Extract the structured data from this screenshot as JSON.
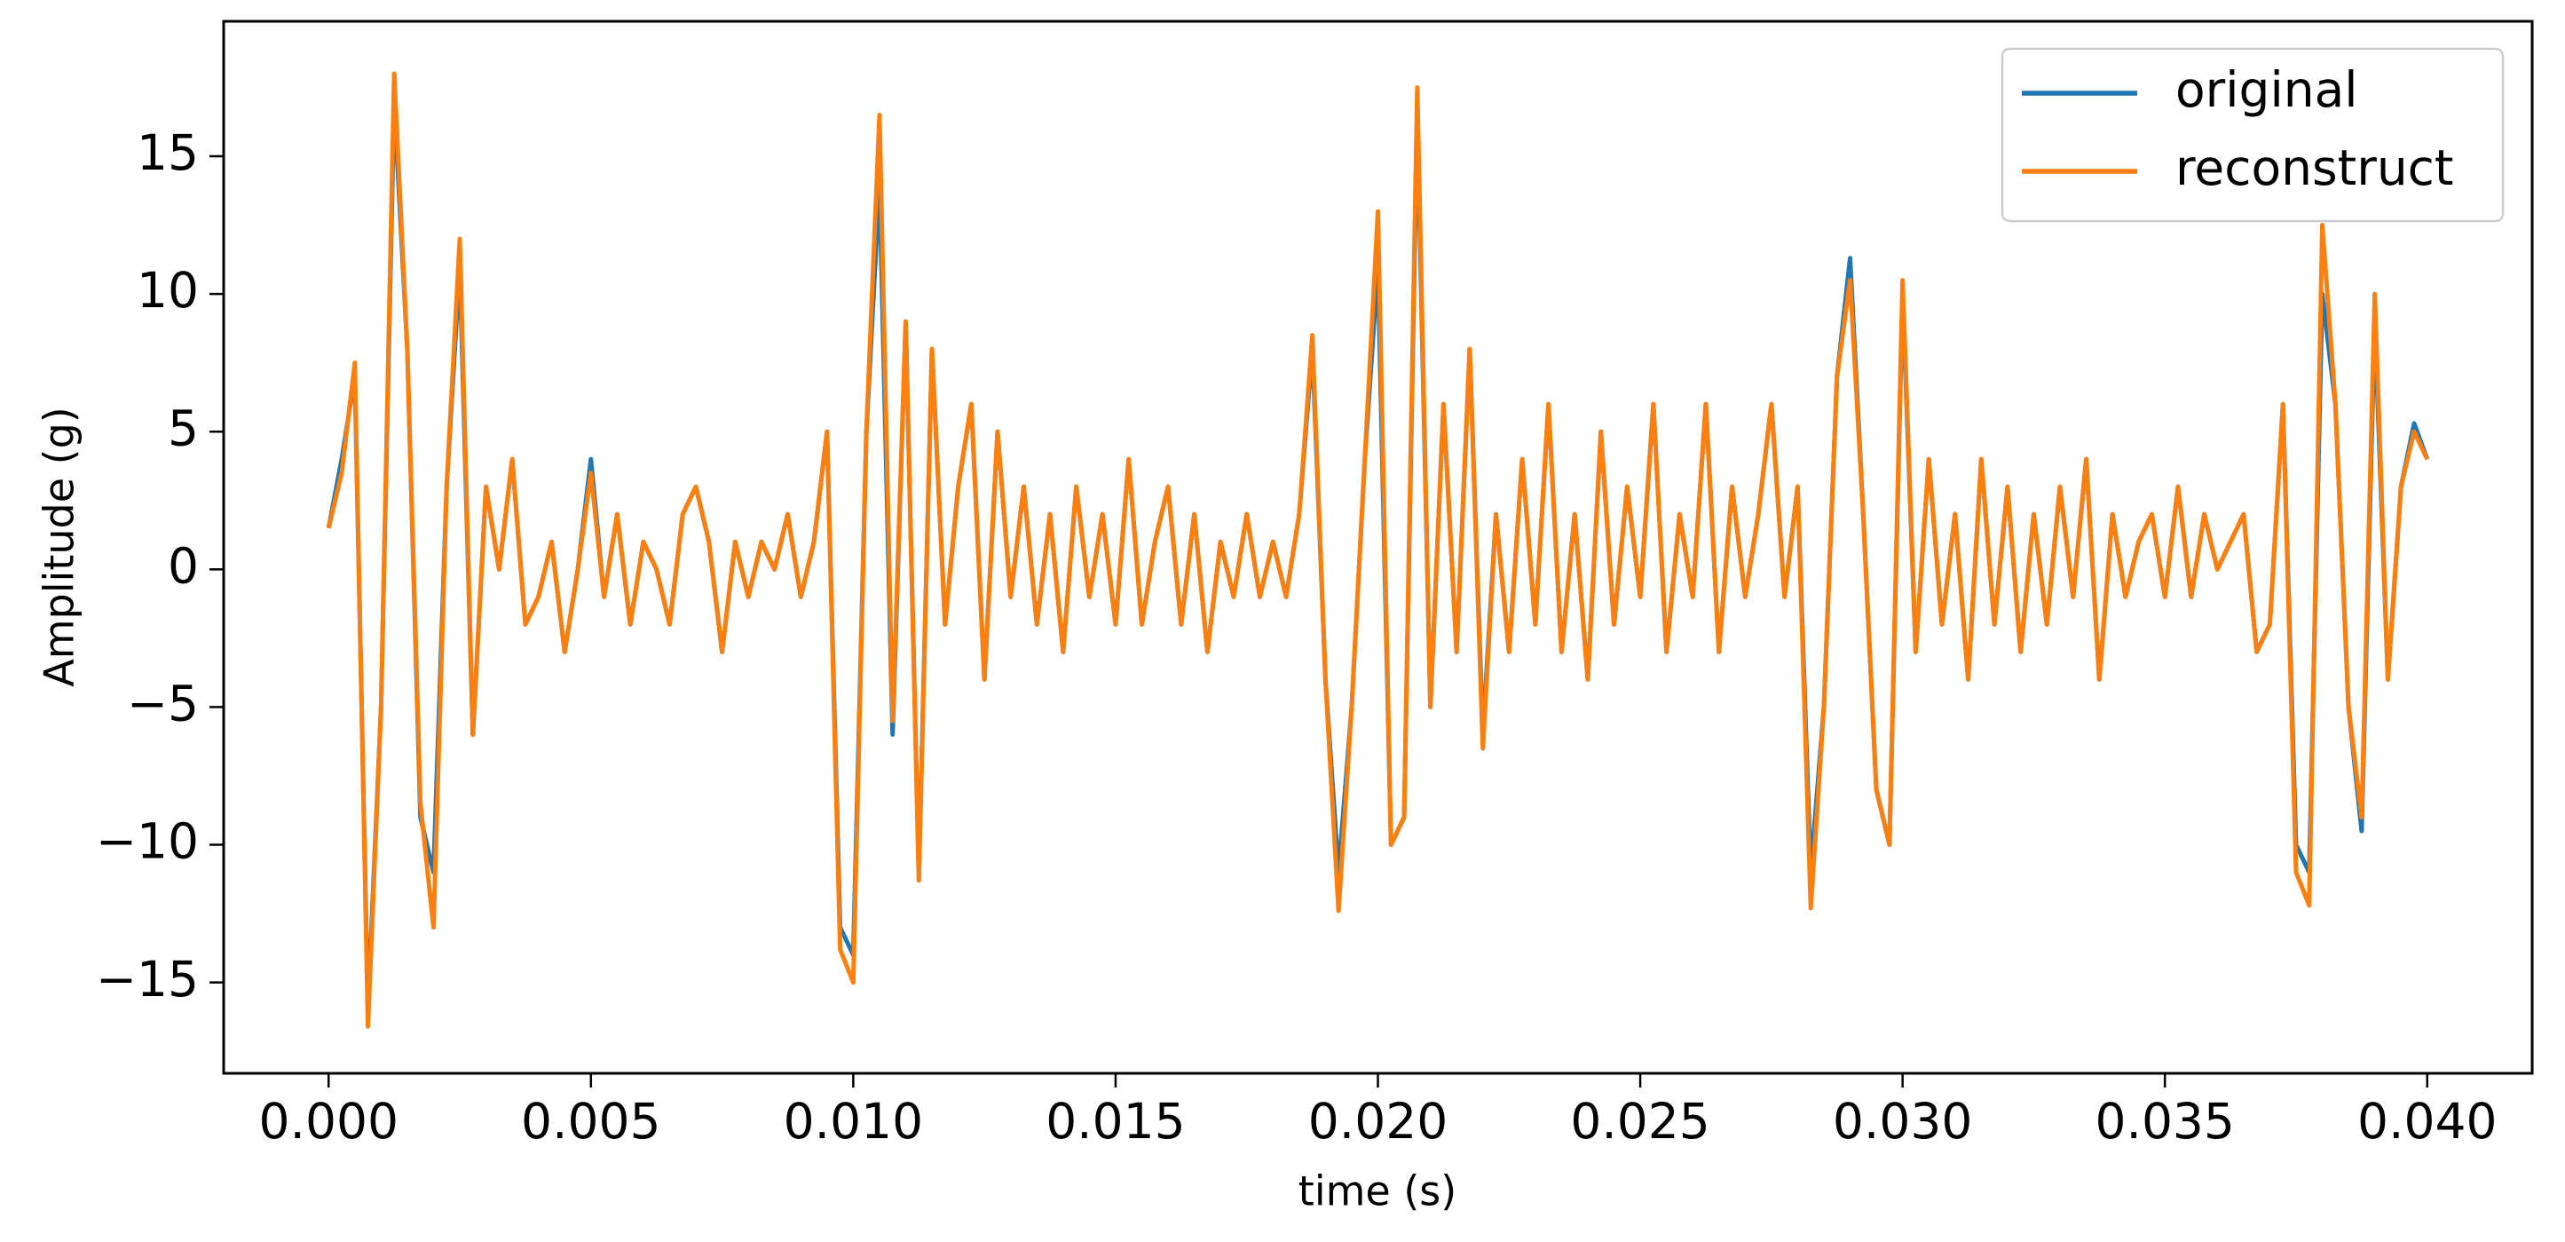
{
  "chart_data": {
    "type": "line",
    "xlabel": "time (s)",
    "ylabel": "Amplitude (g)",
    "xlim": [
      -0.002,
      0.042
    ],
    "ylim": [
      -18.3,
      19.9
    ],
    "xticks": [
      {
        "value": 0,
        "label": "0.000"
      },
      {
        "value": 0.005,
        "label": "0.005"
      },
      {
        "value": 0.01,
        "label": "0.010"
      },
      {
        "value": 0.015,
        "label": "0.015"
      },
      {
        "value": 0.02,
        "label": "0.020"
      },
      {
        "value": 0.025,
        "label": "0.025"
      },
      {
        "value": 0.03,
        "label": "0.030"
      },
      {
        "value": 0.035,
        "label": "0.035"
      },
      {
        "value": 0.04,
        "label": "0.040"
      }
    ],
    "yticks": [
      {
        "value": -15,
        "label": "−15"
      },
      {
        "value": -10,
        "label": "−10"
      },
      {
        "value": -5,
        "label": "−5"
      },
      0,
      5,
      10,
      15
    ],
    "legend": "upper right",
    "grid": false,
    "x": [
      0,
      0.00025,
      0.0005,
      0.00075,
      0.001,
      0.00125,
      0.0015,
      0.00175,
      0.002,
      0.00225,
      0.0025,
      0.00275,
      0.003,
      0.00325,
      0.0035,
      0.00375,
      0.004,
      0.00425,
      0.0045,
      0.00475,
      0.005,
      0.00525,
      0.0055,
      0.00575,
      0.006,
      0.00625,
      0.0065,
      0.00675,
      0.007,
      0.00725,
      0.0075,
      0.00775,
      0.008,
      0.00825,
      0.0085,
      0.00875,
      0.009,
      0.00925,
      0.0095,
      0.00975,
      0.01,
      0.01025,
      0.0105,
      0.01075,
      0.011,
      0.01125,
      0.0115,
      0.01175,
      0.012,
      0.01225,
      0.0125,
      0.01275,
      0.013,
      0.01325,
      0.0135,
      0.01375,
      0.014,
      0.01425,
      0.0145,
      0.01475,
      0.015,
      0.01525,
      0.0155,
      0.01575,
      0.016,
      0.01625,
      0.0165,
      0.01675,
      0.017,
      0.01725,
      0.0175,
      0.01775,
      0.018,
      0.01825,
      0.0185,
      0.01875,
      0.019,
      0.01925,
      0.0195,
      0.01975,
      0.02,
      0.02025,
      0.0205,
      0.02075,
      0.021,
      0.02125,
      0.0215,
      0.02175,
      0.022,
      0.02225,
      0.0225,
      0.02275,
      0.023,
      0.02325,
      0.0235,
      0.02375,
      0.024,
      0.02425,
      0.0245,
      0.02475,
      0.025,
      0.02525,
      0.0255,
      0.02575,
      0.026,
      0.02625,
      0.0265,
      0.02675,
      0.027,
      0.02725,
      0.0275,
      0.02775,
      0.028,
      0.02825,
      0.0285,
      0.02875,
      0.029,
      0.02925,
      0.0295,
      0.02975,
      0.03,
      0.03025,
      0.0305,
      0.03075,
      0.031,
      0.03125,
      0.0315,
      0.03175,
      0.032,
      0.03225,
      0.0325,
      0.03275,
      0.033,
      0.03325,
      0.0335,
      0.03375,
      0.034,
      0.03425,
      0.0345,
      0.03475,
      0.035,
      0.03525,
      0.0355,
      0.03575,
      0.036,
      0.03625,
      0.0365,
      0.03675,
      0.037,
      0.03725,
      0.0375,
      0.03775,
      0.038,
      0.03825,
      0.0385,
      0.03875,
      0.039,
      0.03925,
      0.0395,
      0.03975,
      0.04
    ],
    "series": [
      {
        "name": "original",
        "color": "#1f77b4",
        "values": [
          1.5,
          4,
          7,
          -16,
          -5,
          17,
          8,
          -9,
          -11,
          3,
          11,
          -6,
          3,
          0,
          4,
          -2,
          -1,
          1,
          -3,
          0,
          4,
          -1,
          2,
          -2,
          1,
          0,
          -2,
          2,
          3,
          1,
          -3,
          1,
          -1,
          1,
          0,
          2,
          -1,
          1,
          5,
          -13,
          -14,
          5,
          14,
          -6,
          9,
          -11,
          8,
          -2,
          3,
          6,
          -4,
          5,
          -1,
          3,
          -2,
          2,
          -3,
          3,
          -1,
          2,
          -2,
          4,
          -2,
          1,
          3,
          -2,
          2,
          -3,
          1,
          -1,
          2,
          -1,
          1,
          -1,
          2,
          8,
          -4,
          -11,
          -5,
          4,
          11,
          -10,
          -9,
          16.5,
          -5,
          6,
          -3,
          8,
          -6,
          2,
          -3,
          4,
          -2,
          6,
          -3,
          2,
          -4,
          5,
          -2,
          3,
          -1,
          6,
          -3,
          2,
          -1,
          6,
          -3,
          3,
          -1,
          2,
          6,
          -1,
          3,
          -11,
          -5,
          7,
          11.3,
          2,
          -8,
          -10,
          10,
          -3,
          4,
          -2,
          2,
          -4,
          4,
          -2,
          3,
          -3,
          2,
          -2,
          3,
          -1,
          4,
          -4,
          2,
          -1,
          1,
          2,
          -1,
          3,
          -1,
          2,
          0,
          1,
          2,
          -3,
          -2,
          6,
          -10,
          -11,
          10,
          6,
          -5,
          -9.5,
          9,
          -4,
          3,
          5.3,
          4
        ]
      },
      {
        "name": "reconstruct",
        "color": "#ff7f0e",
        "values": [
          1.5,
          3.5,
          7.5,
          -16.6,
          -5,
          18,
          8,
          -8.5,
          -13,
          3,
          12,
          -6,
          3,
          0,
          4,
          -2,
          -1,
          1,
          -3,
          0,
          3.5,
          -1,
          2,
          -2,
          1,
          0,
          -2,
          2,
          3,
          1,
          -3,
          1,
          -1,
          1,
          0,
          2,
          -1,
          1,
          5,
          -13.8,
          -15,
          5,
          16.5,
          -5.5,
          9,
          -11.3,
          8,
          -2,
          3,
          6,
          -4,
          5,
          -1,
          3,
          -2,
          2,
          -3,
          3,
          -1,
          2,
          -2,
          4,
          -2,
          1,
          3,
          -2,
          2,
          -3,
          1,
          -1,
          2,
          -1,
          1,
          -1,
          2,
          8.5,
          -4,
          -12.4,
          -5,
          4,
          13,
          -10,
          -9,
          17.5,
          -5,
          6,
          -3,
          8,
          -6.5,
          2,
          -3,
          4,
          -2,
          6,
          -3,
          2,
          -4,
          5,
          -2,
          3,
          -1,
          6,
          -3,
          2,
          -1,
          6,
          -3,
          3,
          -1,
          2,
          6,
          -1,
          3,
          -12.3,
          -5,
          7,
          10.5,
          2,
          -8,
          -10,
          10.5,
          -3,
          4,
          -2,
          2,
          -4,
          4,
          -2,
          3,
          -3,
          2,
          -2,
          3,
          -1,
          4,
          -4,
          2,
          -1,
          1,
          2,
          -1,
          3,
          -1,
          2,
          0,
          1,
          2,
          -3,
          -2,
          6,
          -11,
          -12.2,
          12.5,
          6,
          -5,
          -9,
          10,
          -4,
          3,
          5,
          4
        ]
      }
    ]
  }
}
